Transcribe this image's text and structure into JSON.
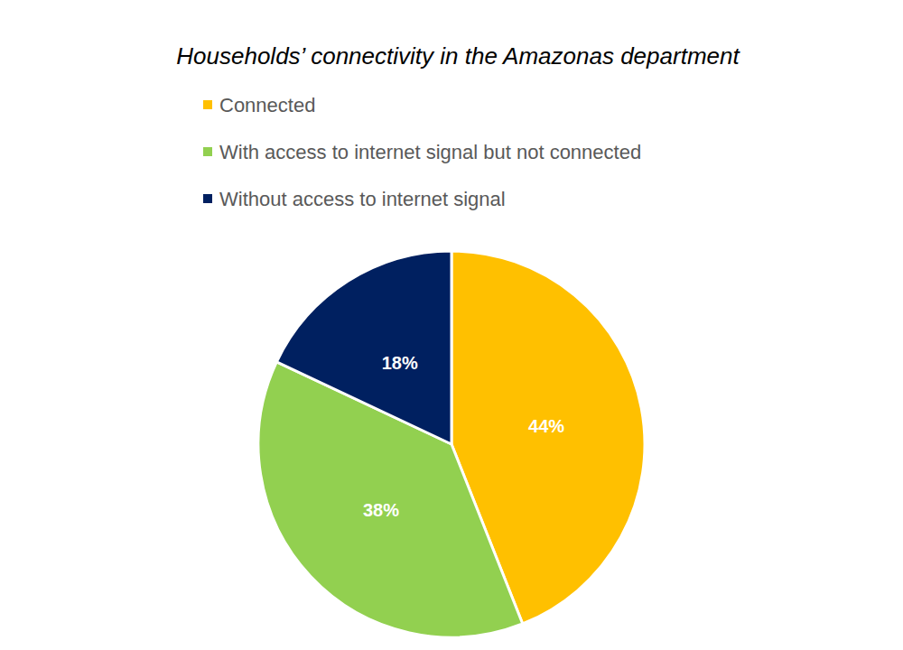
{
  "chart_data": {
    "type": "pie",
    "title": "Households’ connectivity in the Amazonas department",
    "categories": [
      "Connected",
      "With access to internet signal but not connected",
      "Without access to internet signal"
    ],
    "values": [
      44,
      38,
      18
    ],
    "value_labels": [
      "44%",
      "38%",
      "18%"
    ],
    "colors": [
      "#ffc000",
      "#92d050",
      "#002060"
    ],
    "data_labels": true,
    "legend": "top"
  }
}
